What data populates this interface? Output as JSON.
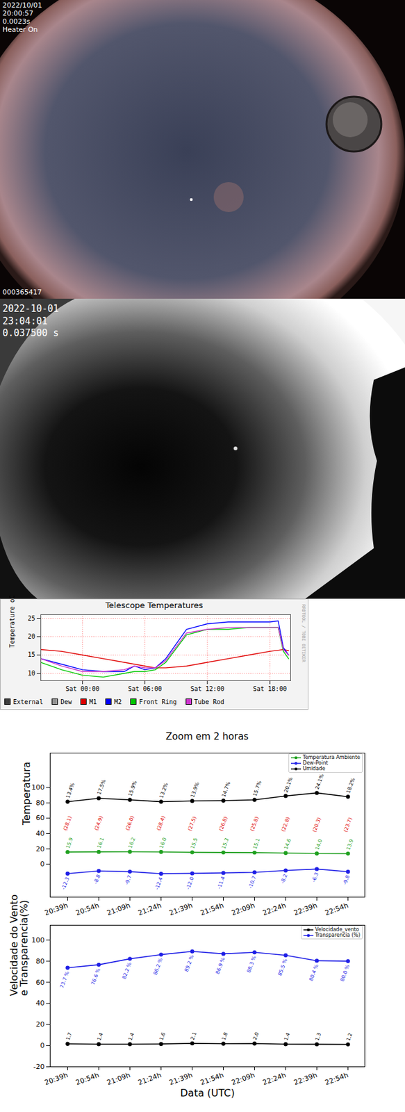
{
  "photos": [
    {
      "date": "2022/10/01",
      "time": "20:00:57",
      "exposure": "0.0023s",
      "status": "Heater On",
      "frame_id": "000365417"
    },
    {
      "date": "2022-10-01",
      "time": "23:04:01",
      "exposure": "0.037500 s"
    }
  ],
  "chart_data": [
    {
      "type": "line",
      "title": "Telescope Temperatures",
      "ylabel": "Temperature oC",
      "watermark": "RRDTOOL / TOBI OETIKER",
      "x": [
        -4,
        -2,
        0,
        2,
        4,
        5,
        6,
        7,
        8,
        10,
        12,
        14,
        16,
        18,
        18.8,
        19.3,
        19.8
      ],
      "xlim": [
        -4,
        20
      ],
      "xticks": [
        {
          "value": 0,
          "label": "Sat 00:00"
        },
        {
          "value": 6,
          "label": "Sat 06:00"
        },
        {
          "value": 12,
          "label": "Sat 12:00"
        },
        {
          "value": 18,
          "label": "Sat 18:00"
        }
      ],
      "ylim": [
        8,
        26
      ],
      "yticks": [
        10,
        15,
        20,
        25
      ],
      "grid": true,
      "legend": "bottom",
      "series": [
        {
          "name": "External",
          "color": "#404040",
          "values": [
            null,
            null,
            null,
            null,
            null,
            null,
            null,
            null,
            null,
            null,
            null,
            null,
            null,
            null,
            null,
            null,
            null
          ]
        },
        {
          "name": "Dew",
          "color": "#909090",
          "values": [
            null,
            null,
            null,
            null,
            null,
            null,
            null,
            null,
            null,
            null,
            null,
            null,
            null,
            null,
            null,
            null,
            null
          ]
        },
        {
          "name": "M1",
          "color": "#e00000",
          "values": [
            16.5,
            16,
            15,
            14,
            13,
            12.5,
            12,
            11.5,
            11.5,
            12,
            13,
            14,
            15,
            16,
            16.3,
            16.5,
            16.2
          ]
        },
        {
          "name": "M2",
          "color": "#0000ff",
          "values": [
            14,
            12.5,
            11,
            10.5,
            10.5,
            12,
            11,
            11.5,
            14,
            22,
            23.5,
            24,
            24,
            24,
            24.3,
            17,
            15
          ]
        },
        {
          "name": "Front Ring",
          "color": "#00c800",
          "values": [
            13,
            11,
            9.5,
            9,
            10,
            10.5,
            10.5,
            11,
            13,
            20.5,
            22,
            22,
            22.5,
            22.5,
            22.5,
            16,
            14
          ]
        },
        {
          "name": "Tube Rod",
          "color": "#cc33cc",
          "values": [
            14,
            12,
            10.5,
            10.5,
            11,
            12,
            11.5,
            11.5,
            13.5,
            21,
            22,
            22.5,
            22.5,
            22.5,
            22.5,
            16.5,
            15
          ]
        }
      ]
    },
    {
      "type": "line",
      "title": "Zoom em 2 horas",
      "ylabel": "Temperatura",
      "categories": [
        "20:39h",
        "20:54h",
        "21:09h",
        "21:24h",
        "21:39h",
        "21:54h",
        "22:09h",
        "22:24h",
        "22:39h",
        "22:54h"
      ],
      "ylim": [
        -43,
        145
      ],
      "yticks": [
        0,
        20,
        40,
        60,
        80,
        100
      ],
      "legend": "upper right",
      "marker": "circle",
      "series": [
        {
          "name": "Temperatura Ambiente",
          "color": "#1fa01f",
          "values": [
            15.9,
            16.1,
            16.2,
            16.0,
            15.5,
            15.3,
            15.1,
            14.6,
            14.0,
            13.9
          ],
          "data_labels": true,
          "value_labels": [
            "15.9",
            "16.1",
            "16.2",
            "16.0",
            "15.5",
            "15.3",
            "15.1",
            "14.6",
            "14.0",
            "13.9"
          ]
        },
        {
          "name": "Dew-Point",
          "color": "#1f1fe6",
          "values": [
            -12.3,
            -8.8,
            -9.7,
            -12.4,
            -12.0,
            -11.4,
            -10.7,
            -8.2,
            -6.3,
            -9.8
          ],
          "data_labels": true,
          "value_labels": [
            "-12.3",
            "-8.8",
            "-9.7",
            "-12.4",
            "-12.0",
            "-11.4",
            "-10.7",
            "-8.2",
            "-6.3",
            "-9.8"
          ]
        },
        {
          "name": "Umidade",
          "color": "#000000",
          "values": [
            81.5,
            86,
            84,
            81.5,
            82.5,
            83,
            84,
            89,
            93,
            88
          ],
          "labels": [
            "13.4%",
            "17.5%",
            "15.9%",
            "13.2%",
            "13.9%",
            "14.7%",
            "15.7%",
            "20.1%",
            "24.1%",
            "18.2%"
          ]
        }
      ],
      "annotations": {
        "color": "#e00000",
        "labels": [
          "(28.1)",
          "(24.9)",
          "(26.0)",
          "(28.4)",
          "(27.5)",
          "(26.8)",
          "(25.8)",
          "(22.8)",
          "(20.3)",
          "(23.7)"
        ]
      }
    },
    {
      "type": "line",
      "ylabel": "Velocidade do Vento\ne Transparencia(%)",
      "xlabel": "Data (UTC)",
      "categories": [
        "20:39h",
        "20:54h",
        "21:09h",
        "21:24h",
        "21:39h",
        "21:54h",
        "22:09h",
        "22:24h",
        "22:39h",
        "22:54h"
      ],
      "ylim": [
        -20,
        114
      ],
      "yticks": [
        -20,
        0,
        20,
        40,
        60,
        80,
        100
      ],
      "legend": "upper right",
      "marker": "circle",
      "series": [
        {
          "name": "Velocidade_vento",
          "color": "#000000",
          "values": [
            1.7,
            1.4,
            1.4,
            1.6,
            2.1,
            1.8,
            2.0,
            1.4,
            1.3,
            1.2
          ],
          "data_labels": true,
          "value_labels": [
            "1.7",
            "1.4",
            "1.4",
            "1.6",
            "2.1",
            "1.8",
            "2.0",
            "1.4",
            "1.3",
            "1.2"
          ]
        },
        {
          "name": "Transparencia (%)",
          "color": "#1f1fe6",
          "values": [
            73.7,
            76.6,
            82.2,
            86.2,
            89.2,
            86.9,
            88.3,
            85.5,
            80.4,
            80.0
          ],
          "data_labels": true,
          "value_labels": [
            "73.7 %",
            "76.6 %",
            "82.2 %",
            "86.2 %",
            "89.2 %",
            "86.9 %",
            "88.3 %",
            "85.5 %",
            "80.4 %",
            "80.0 %"
          ]
        }
      ]
    }
  ]
}
